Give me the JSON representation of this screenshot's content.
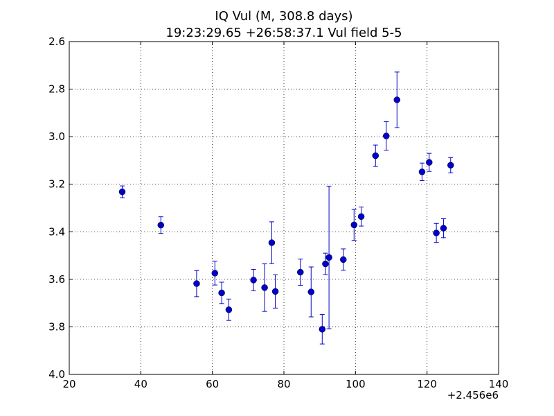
{
  "chart_data": {
    "type": "scatter",
    "title": "IQ Vul (M, 308.8 days)",
    "subtitle": "19:23:29.65 +26:58:37.1 Vul field 5-5",
    "xlabel": "",
    "ylabel": "",
    "x_offset_label": "+2.456e6",
    "xlim": [
      20,
      140
    ],
    "ylim": [
      4.0,
      2.6
    ],
    "y_inverted": true,
    "grid": true,
    "x_ticks": [
      20,
      40,
      60,
      80,
      100,
      120,
      140
    ],
    "x_tick_labels": [
      "20",
      "40",
      "60",
      "80",
      "100",
      "120",
      "140"
    ],
    "y_ticks": [
      2.6,
      2.8,
      3.0,
      3.2,
      3.4,
      3.6,
      3.8,
      4.0
    ],
    "y_tick_labels": [
      "2.6",
      "2.8",
      "3.0",
      "3.2",
      "3.4",
      "3.6",
      "3.8",
      "4.0"
    ],
    "color": "#0000cc",
    "points": [
      {
        "x": 34.8,
        "y": 3.232,
        "err": 0.025
      },
      {
        "x": 45.6,
        "y": 3.372,
        "err": 0.035
      },
      {
        "x": 55.6,
        "y": 3.618,
        "err": 0.055
      },
      {
        "x": 60.7,
        "y": 3.574,
        "err": 0.05
      },
      {
        "x": 62.6,
        "y": 3.657,
        "err": 0.045
      },
      {
        "x": 64.6,
        "y": 3.728,
        "err": 0.045
      },
      {
        "x": 71.5,
        "y": 3.603,
        "err": 0.045
      },
      {
        "x": 74.6,
        "y": 3.635,
        "err": 0.1
      },
      {
        "x": 76.6,
        "y": 3.446,
        "err": 0.088
      },
      {
        "x": 77.6,
        "y": 3.651,
        "err": 0.07
      },
      {
        "x": 84.6,
        "y": 3.57,
        "err": 0.055
      },
      {
        "x": 87.6,
        "y": 3.653,
        "err": 0.105
      },
      {
        "x": 90.7,
        "y": 3.81,
        "err": 0.062
      },
      {
        "x": 91.6,
        "y": 3.535,
        "err": 0.045
      },
      {
        "x": 92.6,
        "y": 3.508,
        "err": 0.3
      },
      {
        "x": 96.6,
        "y": 3.517,
        "err": 0.045
      },
      {
        "x": 99.6,
        "y": 3.371,
        "err": 0.065
      },
      {
        "x": 101.6,
        "y": 3.336,
        "err": 0.04
      },
      {
        "x": 105.6,
        "y": 3.08,
        "err": 0.045
      },
      {
        "x": 108.6,
        "y": 2.997,
        "err": 0.06
      },
      {
        "x": 111.6,
        "y": 2.845,
        "err": 0.117
      },
      {
        "x": 118.6,
        "y": 3.148,
        "err": 0.037
      },
      {
        "x": 120.6,
        "y": 3.108,
        "err": 0.038
      },
      {
        "x": 122.6,
        "y": 3.405,
        "err": 0.04
      },
      {
        "x": 124.6,
        "y": 3.385,
        "err": 0.04
      },
      {
        "x": 126.6,
        "y": 3.12,
        "err": 0.032
      }
    ]
  }
}
